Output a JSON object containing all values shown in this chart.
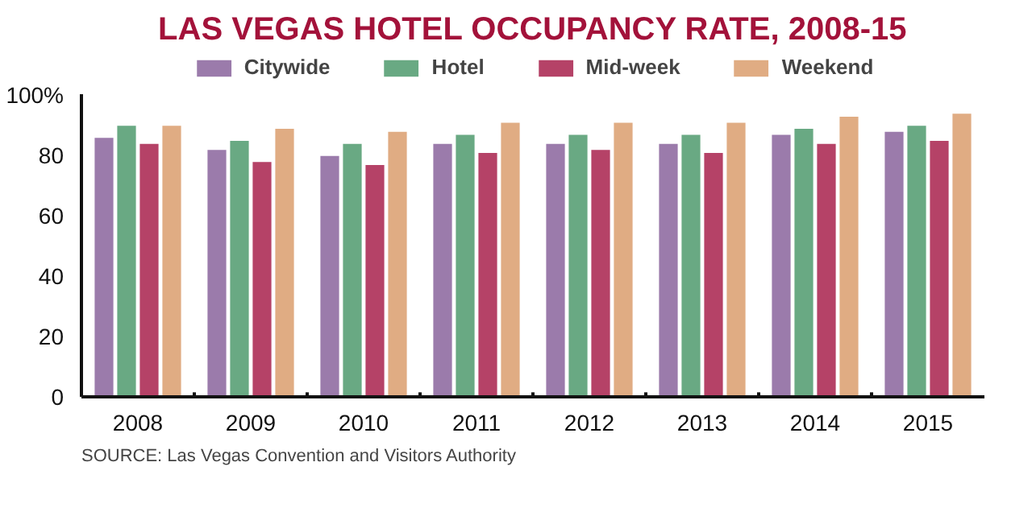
{
  "chart_data": {
    "type": "bar",
    "title": "LAS VEGAS HOTEL OCCUPANCY RATE, 2008-15",
    "categories": [
      "2008",
      "2009",
      "2010",
      "2011",
      "2012",
      "2013",
      "2014",
      "2015"
    ],
    "series": [
      {
        "name": "Citywide",
        "color": "#9b7bab",
        "values": [
          86,
          82,
          80,
          84,
          84,
          84,
          87,
          88
        ]
      },
      {
        "name": "Hotel",
        "color": "#69a983",
        "values": [
          90,
          85,
          84,
          87,
          87,
          87,
          89,
          90
        ]
      },
      {
        "name": "Mid-week",
        "color": "#b54267",
        "values": [
          84,
          78,
          77,
          81,
          82,
          81,
          84,
          85
        ]
      },
      {
        "name": "Weekend",
        "color": "#e0ac83",
        "values": [
          90,
          89,
          88,
          91,
          91,
          91,
          93,
          94
        ]
      }
    ],
    "ylim": [
      0,
      100
    ],
    "yticks": [
      0,
      20,
      40,
      60,
      80,
      {
        "value": 100,
        "label": "100%"
      }
    ],
    "grid": false,
    "legend": "top",
    "annotations": [
      "SOURCE: Las Vegas Convention and Visitors Authority"
    ]
  }
}
